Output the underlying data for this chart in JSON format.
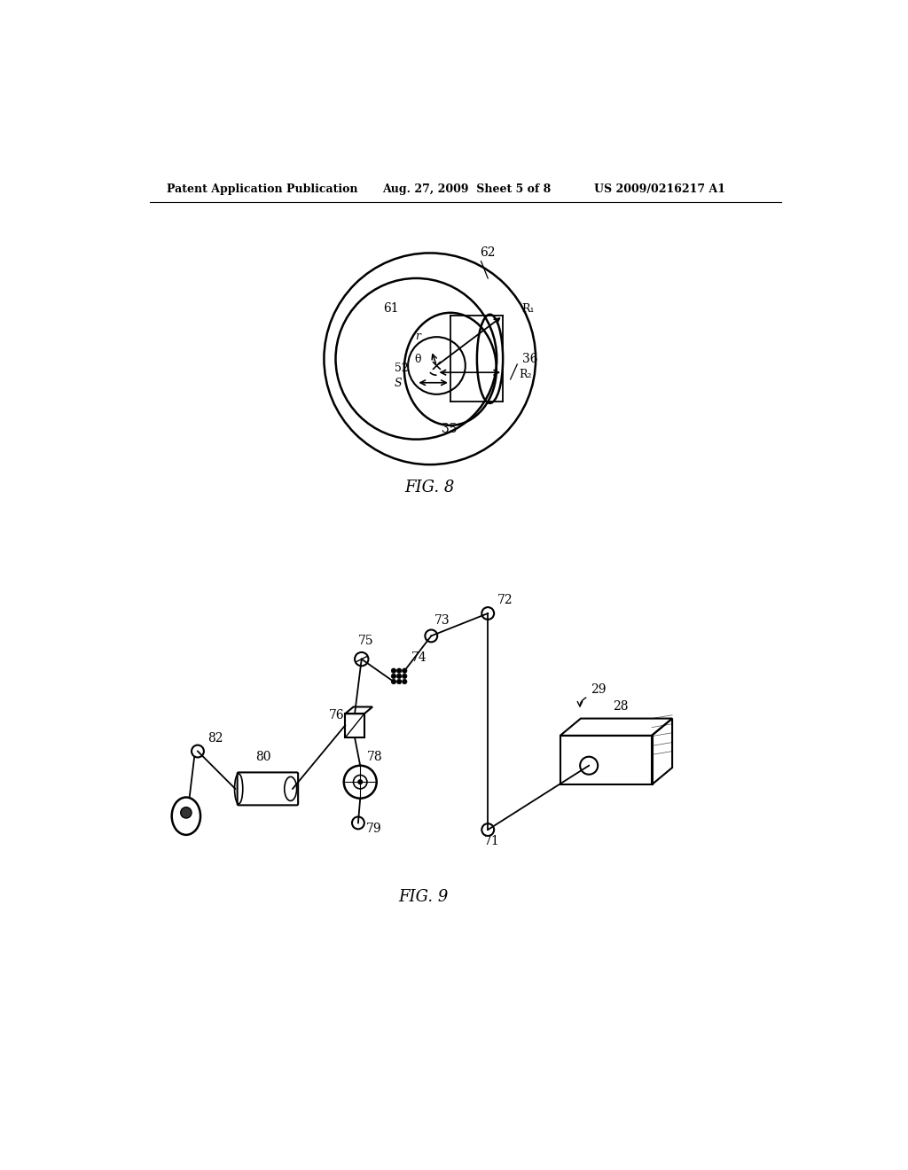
{
  "background_color": "#ffffff",
  "header_left": "Patent Application Publication",
  "header_mid": "Aug. 27, 2009  Sheet 5 of 8",
  "header_right": "US 2009/0216217 A1",
  "fig8_label": "FIG. 8",
  "fig9_label": "FIG. 9",
  "font_color": "#000000",
  "line_color": "#000000"
}
